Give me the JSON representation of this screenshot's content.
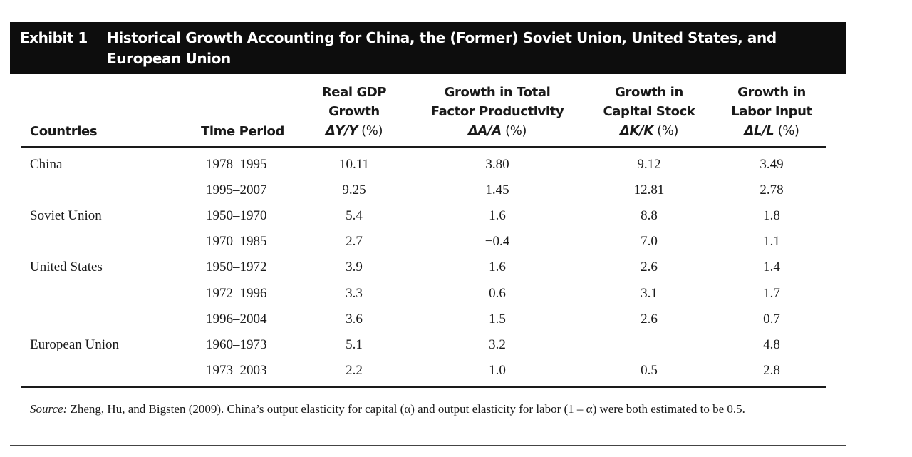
{
  "exhibit": {
    "label": "Exhibit 1",
    "title": "Historical Growth Accounting for China, the (Former) Soviet Union, United States, and European Union"
  },
  "table": {
    "headers": {
      "countries": "Countries",
      "time_period": "Time Period",
      "gdp": {
        "line1": "Real GDP",
        "line2": "Growth",
        "symbol": "ΔY/Y",
        "unit": " (%)"
      },
      "tfp": {
        "line1": "Growth in Total",
        "line2": "Factor Productivity",
        "symbol": "ΔA/A",
        "unit": " (%)"
      },
      "capital": {
        "line1": "Growth in",
        "line2": "Capital Stock",
        "symbol": "ΔK/K",
        "unit": " (%)"
      },
      "labor": {
        "line1": "Growth in",
        "line2": "Labor Input",
        "symbol": "ΔL/L",
        "unit": " (%)"
      }
    },
    "rows": [
      {
        "country": "China",
        "period": "1978–1995",
        "gdp": "10.11",
        "tfp": "3.80",
        "capital": "9.12",
        "labor": "3.49"
      },
      {
        "country": "",
        "period": "1995–2007",
        "gdp": "9.25",
        "tfp": "1.45",
        "capital": "12.81",
        "labor": "2.78"
      },
      {
        "country": "Soviet Union",
        "period": "1950–1970",
        "gdp": "5.4",
        "tfp": "1.6",
        "capital": "8.8",
        "labor": "1.8"
      },
      {
        "country": "",
        "period": "1970–1985",
        "gdp": "2.7",
        "tfp": "−0.4",
        "capital": "7.0",
        "labor": "1.1"
      },
      {
        "country": "United States",
        "period": "1950–1972",
        "gdp": "3.9",
        "tfp": "1.6",
        "capital": "2.6",
        "labor": "1.4"
      },
      {
        "country": "",
        "period": "1972–1996",
        "gdp": "3.3",
        "tfp": "0.6",
        "capital": "3.1",
        "labor": "1.7"
      },
      {
        "country": "",
        "period": "1996–2004",
        "gdp": "3.6",
        "tfp": "1.5",
        "capital": "2.6",
        "labor": "0.7"
      },
      {
        "country": "European Union",
        "period": "1960–1973",
        "gdp": "5.1",
        "tfp": "3.2",
        "capital": "",
        "labor": "4.8"
      },
      {
        "country": "",
        "period": "1973–2003",
        "gdp": "2.2",
        "tfp": "1.0",
        "capital": "0.5",
        "labor": "2.8"
      }
    ]
  },
  "source": {
    "label": "Source:",
    "text": " Zheng, Hu, and Bigsten (2009). China’s output elasticity for capital (α) and output elasticity for labor (1 – α) were both estimated to be 0.5."
  }
}
